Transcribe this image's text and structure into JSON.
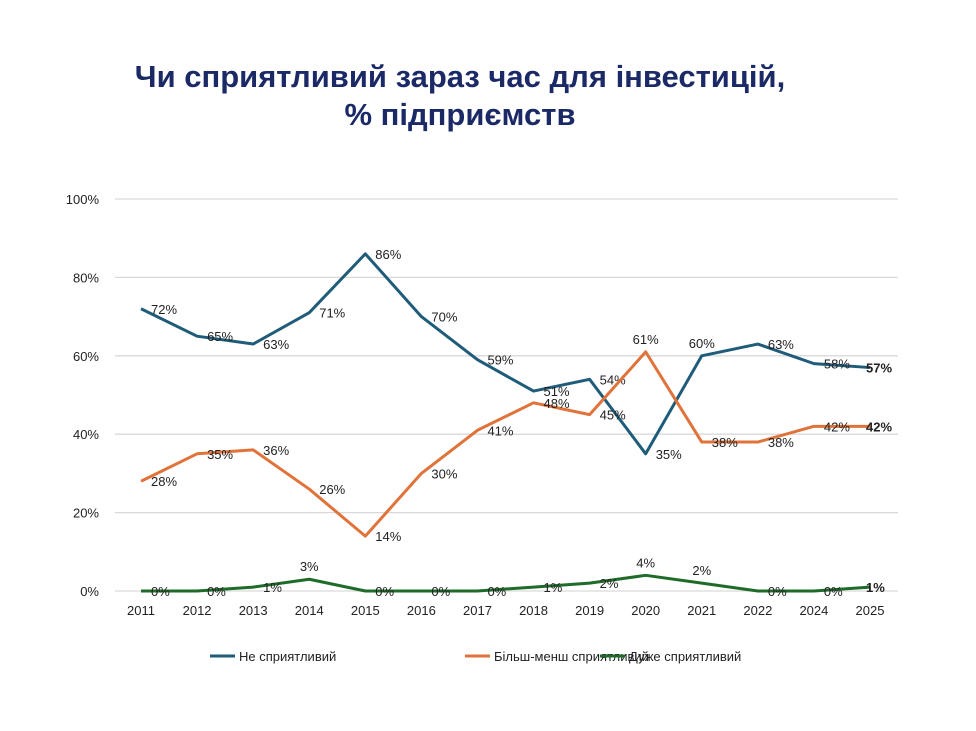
{
  "title": {
    "line1": "Чи сприятливий зараз час для інвестицій,",
    "line2": "% підприємств"
  },
  "chart_data": {
    "type": "line",
    "title": "Чи сприятливий зараз час для інвестицій, % підприємств",
    "xlabel": "",
    "ylabel": "",
    "categories": [
      "2011",
      "2012",
      "2013",
      "2014",
      "2015",
      "2016",
      "2017",
      "2018",
      "2019",
      "2020",
      "2021",
      "2022",
      "2024",
      "2025"
    ],
    "ylim": [
      0,
      100
    ],
    "yticks": [
      "0%",
      "20%",
      "40%",
      "60%",
      "80%",
      "100%"
    ],
    "grid": true,
    "legend_position": "bottom",
    "series": [
      {
        "name": "Не сприятливий",
        "color": "#1f5c7a",
        "values": [
          72,
          65,
          63,
          71,
          86,
          70,
          59,
          51,
          54,
          35,
          60,
          63,
          58,
          57
        ]
      },
      {
        "name": "Більш-менш сприятливий",
        "color": "#e0733a",
        "values": [
          28,
          35,
          36,
          26,
          14,
          30,
          41,
          48,
          45,
          61,
          38,
          38,
          42,
          42
        ]
      },
      {
        "name": "Дуже сприятливий",
        "color": "#1e6b2a",
        "values": [
          0,
          0,
          1,
          3,
          0,
          0,
          0,
          1,
          2,
          4,
          2,
          0,
          0,
          1
        ]
      }
    ],
    "label_suffix": "%"
  }
}
